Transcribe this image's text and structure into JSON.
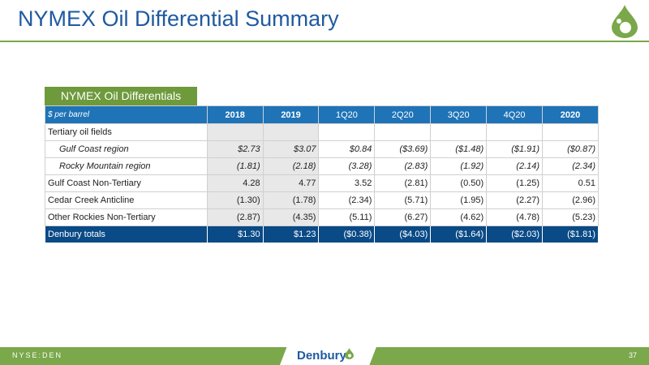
{
  "header": {
    "title": "NYMEX Oil Differential Summary"
  },
  "table": {
    "tab_label": "NYMEX Oil Differentials",
    "columns": [
      "$ per barrel",
      "2018",
      "2019",
      "1Q20",
      "2Q20",
      "3Q20",
      "4Q20",
      "2020"
    ],
    "rows": [
      {
        "label": "Tertiary oil fields",
        "values": [
          "",
          "",
          "",
          "",
          "",
          "",
          ""
        ]
      },
      {
        "label": "Gulf Coast region",
        "values": [
          "$2.73",
          "$3.07",
          "$0.84",
          "($3.69)",
          "($1.48)",
          "($1.91)",
          "($0.87)"
        ]
      },
      {
        "label": "Rocky Mountain region",
        "values": [
          "(1.81)",
          "(2.18)",
          "(3.28)",
          "(2.83)",
          "(1.92)",
          "(2.14)",
          "(2.34)"
        ]
      },
      {
        "label": "Gulf Coast Non-Tertiary",
        "values": [
          "4.28",
          "4.77",
          "3.52",
          "(2.81)",
          "(0.50)",
          "(1.25)",
          "0.51"
        ]
      },
      {
        "label": "Cedar Creek Anticline",
        "values": [
          "(1.30)",
          "(1.78)",
          "(2.34)",
          "(5.71)",
          "(1.95)",
          "(2.27)",
          "(2.96)"
        ]
      },
      {
        "label": "Other Rockies Non-Tertiary",
        "values": [
          "(2.87)",
          "(4.35)",
          "(5.11)",
          "(6.27)",
          "(4.62)",
          "(4.78)",
          "(5.23)"
        ]
      },
      {
        "label": "Denbury totals",
        "values": [
          "$1.30",
          "$1.23",
          "($0.38)",
          "($4.03)",
          "($1.64)",
          "($2.03)",
          "($1.81)"
        ]
      }
    ]
  },
  "footer": {
    "ticker": "NYSE:DEN",
    "logo_text": "Denbury",
    "page_number": "37"
  },
  "colors": {
    "title_blue": "#1f5aa0",
    "header_blue": "#1f73b7",
    "total_navy": "#0a4a86",
    "brand_green": "#7aa84a"
  },
  "icons": {
    "logo": "oil-drop-icon"
  }
}
